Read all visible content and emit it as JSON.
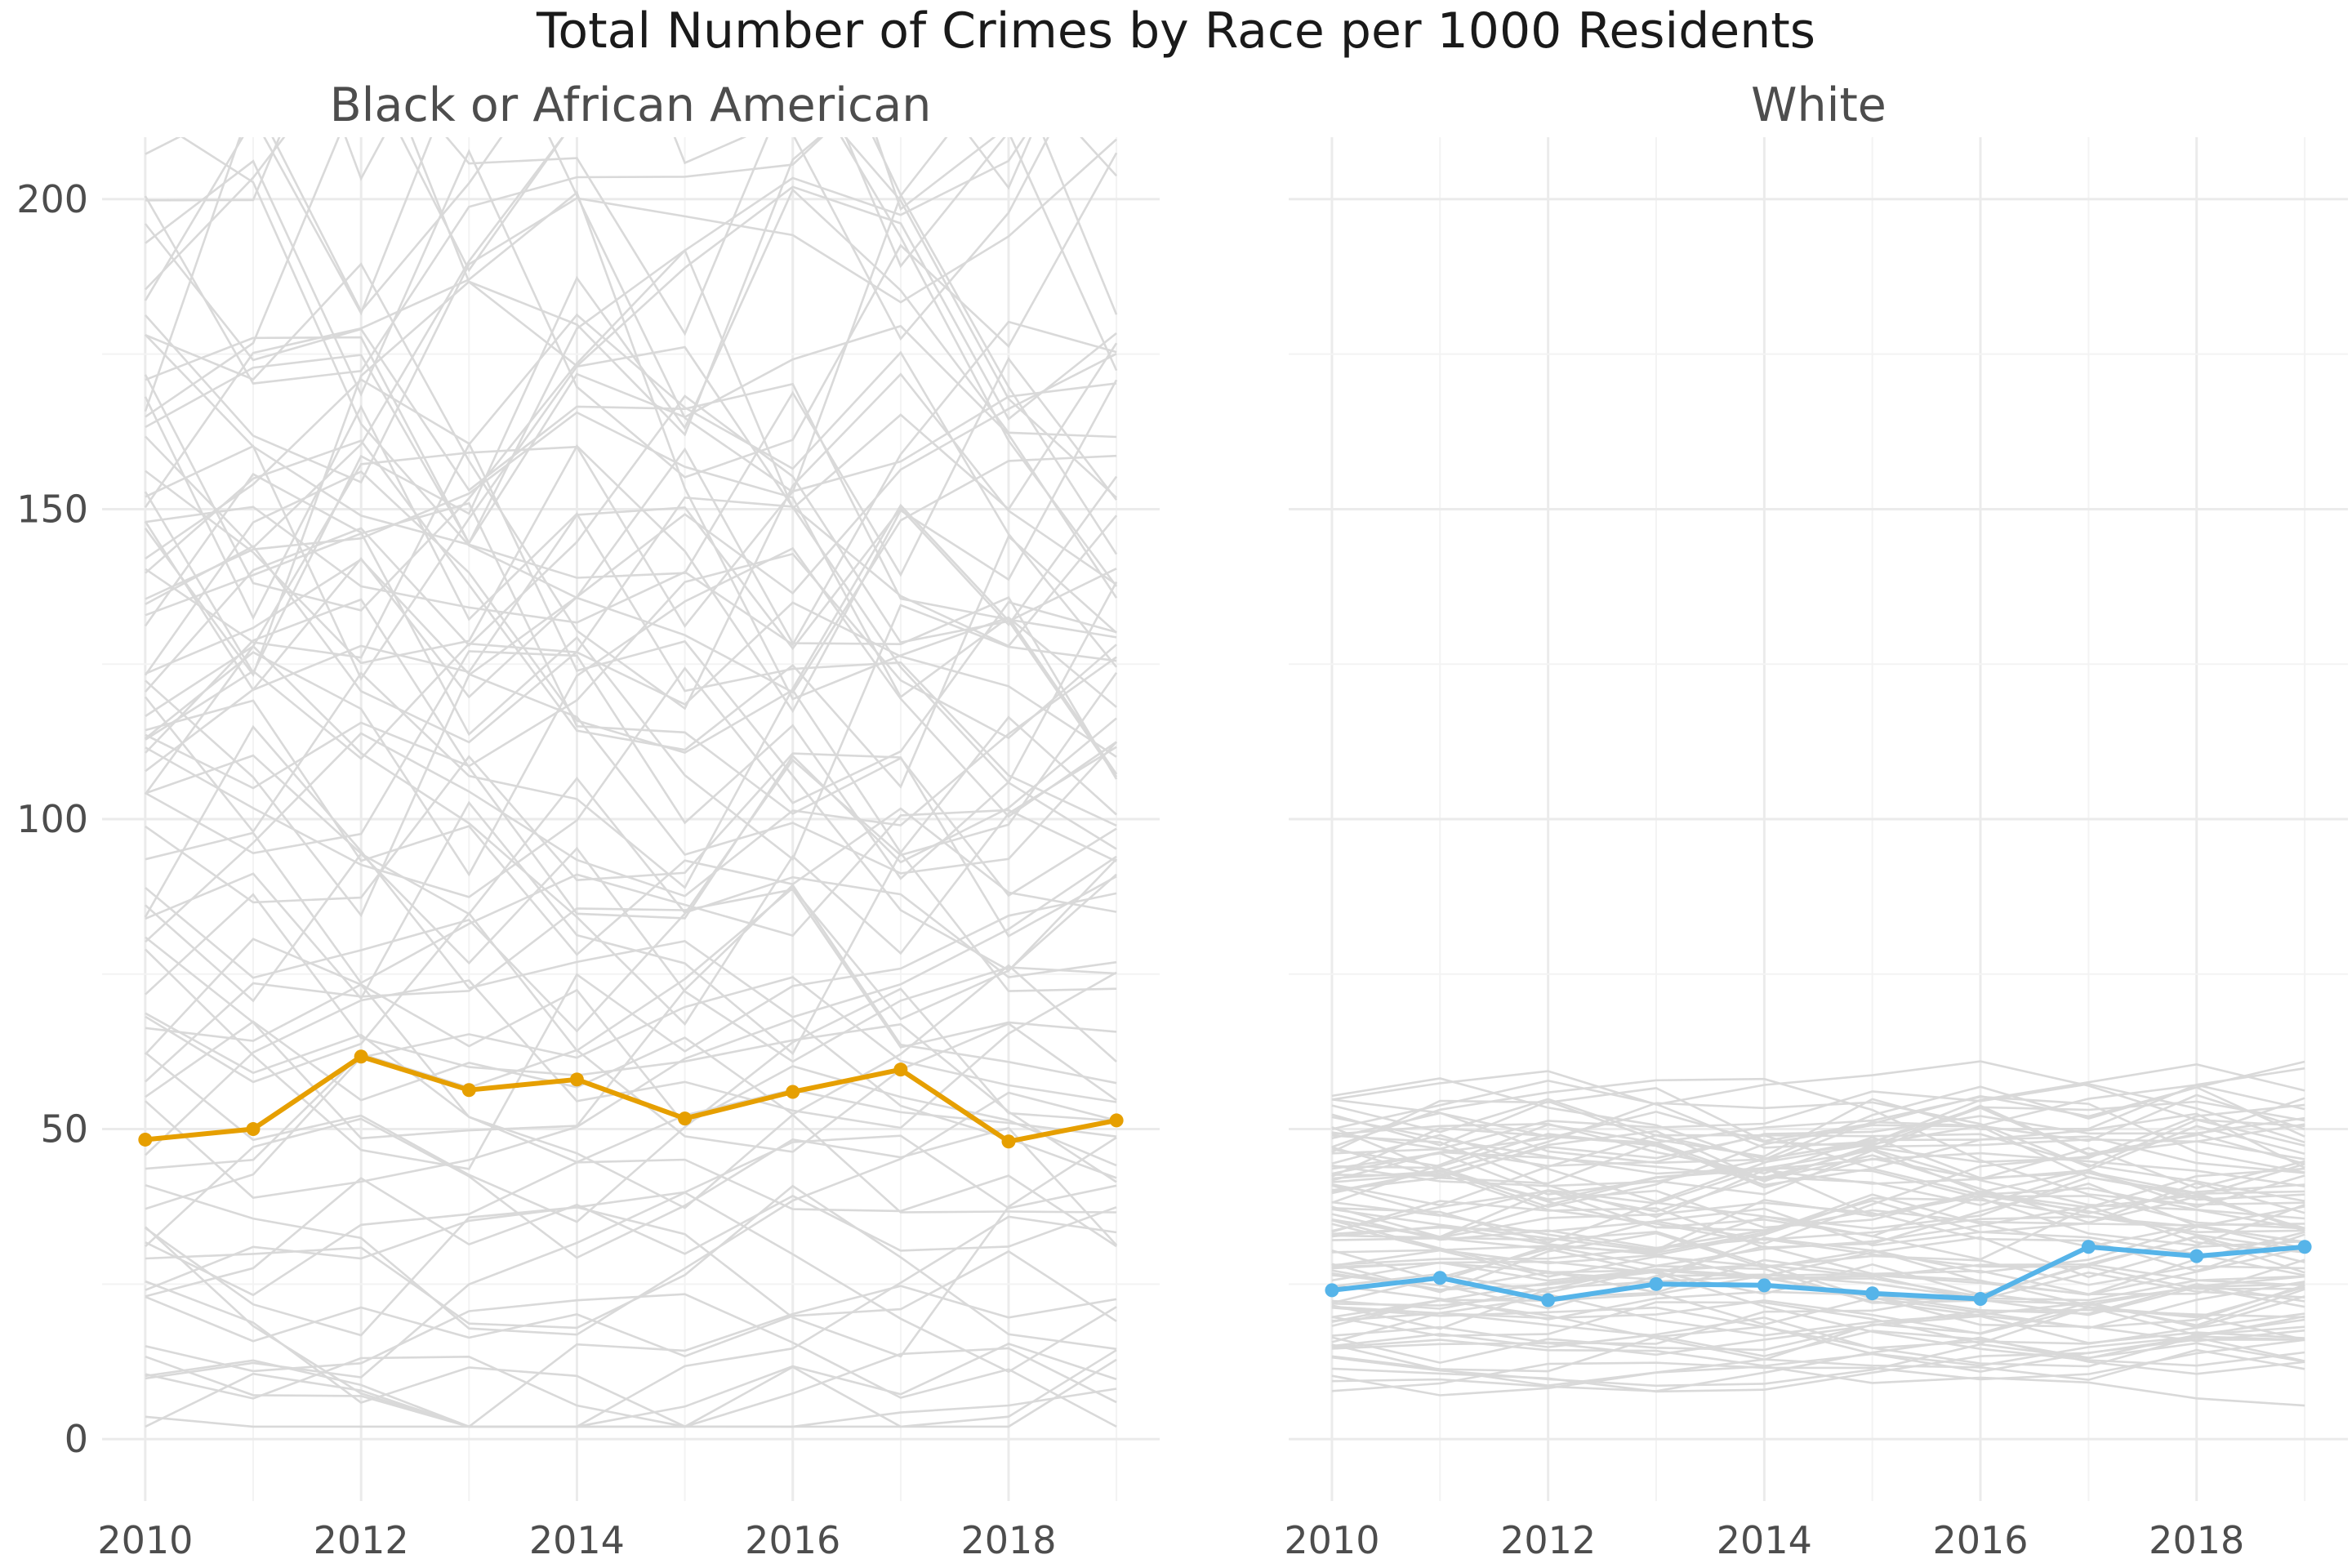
{
  "chart_data": {
    "type": "line",
    "title": "Total Number of Crimes by Race per 1000 Residents",
    "facets": [
      {
        "label": "Black or African American",
        "highlight_color": "#E69F00",
        "highlight": {
          "x": [
            2010,
            2011,
            2012,
            2013,
            2014,
            2015,
            2016,
            2017,
            2018,
            2019
          ],
          "values": [
            48.3,
            50.0,
            61.7,
            56.3,
            58.0,
            51.7,
            56.0,
            59.6,
            48.0,
            51.4
          ]
        }
      },
      {
        "label": "White",
        "highlight_color": "#56B4E9",
        "highlight": {
          "x": [
            2010,
            2011,
            2012,
            2013,
            2014,
            2015,
            2016,
            2017,
            2018,
            2019
          ],
          "values": [
            24.0,
            26.0,
            22.4,
            25.0,
            24.8,
            23.5,
            22.6,
            31.0,
            29.5,
            31.0
          ]
        }
      }
    ],
    "background_series_color": "#d9d9d9",
    "x_ticks": [
      2010,
      2012,
      2014,
      2016,
      2018
    ],
    "y_ticks": [
      0,
      50,
      100,
      150,
      200
    ],
    "x_range": [
      2009.6,
      2019.4
    ],
    "y_range": [
      -10,
      210
    ],
    "grid": true,
    "legend": "none"
  }
}
